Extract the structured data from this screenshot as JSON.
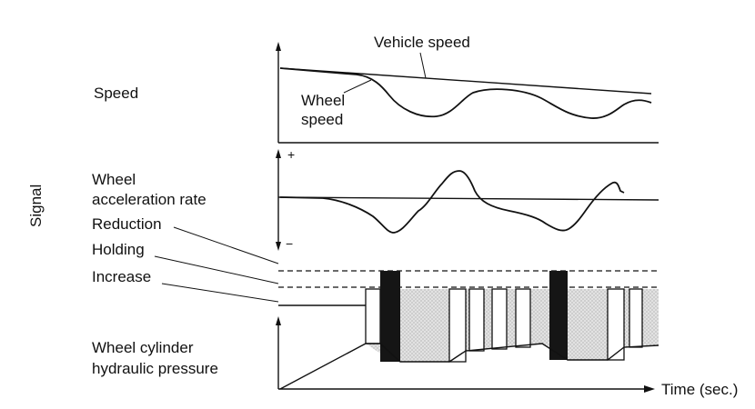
{
  "labels": {
    "signal": "Signal",
    "speed": "Speed",
    "vehicle_speed": "Vehicle speed",
    "wheel_speed_line1": "Wheel",
    "wheel_speed_line2": "speed",
    "wheel_accel_line1": "Wheel",
    "wheel_accel_line2": "acceleration rate",
    "reduction": "Reduction",
    "holding": "Holding",
    "increase": "Increase",
    "cylinder_line1": "Wheel cylinder",
    "cylinder_line2": "hydraulic pressure",
    "time_axis": "Time (sec.)",
    "plus": "+",
    "minus": "−"
  },
  "colors": {
    "ink": "#111111",
    "shade": "#d8d8d8",
    "solid": "#151515",
    "background": "#ffffff"
  }
}
